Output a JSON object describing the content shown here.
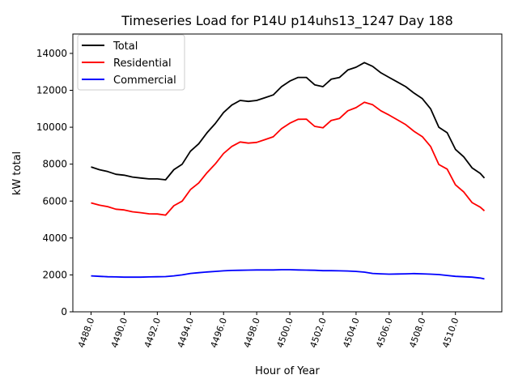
{
  "chart_data": {
    "type": "line",
    "title": "Timeseries Load for P14U p14uhs13_1247  Day 188",
    "xlabel": "Hour of Year",
    "ylabel": "kW total",
    "xlim": [
      4486.9,
      4512.8
    ],
    "ylim": [
      0,
      15050
    ],
    "xticks": [
      4488,
      4490,
      4492,
      4494,
      4496,
      4498,
      4500,
      4502,
      4504,
      4506,
      4508,
      4510
    ],
    "xtick_labels": [
      "4488.0",
      "4490.0",
      "4492.0",
      "4494.0",
      "4496.0",
      "4498.0",
      "4500.0",
      "4502.0",
      "4504.0",
      "4506.0",
      "4508.0",
      "4510.0"
    ],
    "yticks": [
      0,
      2000,
      4000,
      6000,
      8000,
      10000,
      12000,
      14000
    ],
    "ytick_labels": [
      "0",
      "2000",
      "4000",
      "6000",
      "8000",
      "10000",
      "12000",
      "14000"
    ],
    "grid": false,
    "legend_position": "top-left",
    "x": [
      4488,
      4488.5,
      4489,
      4489.5,
      4490,
      4490.5,
      4491,
      4491.5,
      4492,
      4492.5,
      4493,
      4493.5,
      4494,
      4494.5,
      4495,
      4495.5,
      4496,
      4496.5,
      4497,
      4497.5,
      4498,
      4498.5,
      4499,
      4499.5,
      4500,
      4500.5,
      4501,
      4501.5,
      4502,
      4502.5,
      4503,
      4503.5,
      4504,
      4504.5,
      4505,
      4505.5,
      4506,
      4506.5,
      4507,
      4507.5,
      4508,
      4508.5,
      4509,
      4509.5,
      4510,
      4510.5,
      4511,
      4511.5,
      4511.75
    ],
    "series": [
      {
        "name": "Total",
        "color": "#000000",
        "values": [
          7850,
          7700,
          7600,
          7450,
          7400,
          7300,
          7250,
          7200,
          7200,
          7150,
          7700,
          8000,
          8700,
          9100,
          9700,
          10200,
          10800,
          11200,
          11450,
          11400,
          11450,
          11600,
          11750,
          12200,
          12500,
          12700,
          12700,
          12300,
          12200,
          12600,
          12700,
          13100,
          13250,
          13500,
          13300,
          12950,
          12700,
          12450,
          12200,
          11850,
          11550,
          11000,
          10000,
          9700,
          8800,
          8400,
          7800,
          7500,
          7250
        ]
      },
      {
        "name": "Residential",
        "color": "#ff0000",
        "values": [
          5900,
          5780,
          5700,
          5560,
          5520,
          5420,
          5370,
          5310,
          5300,
          5240,
          5750,
          6000,
          6620,
          6980,
          7540,
          8010,
          8580,
          8960,
          9200,
          9140,
          9180,
          9330,
          9480,
          9920,
          10220,
          10430,
          10440,
          10050,
          9970,
          10370,
          10480,
          10890,
          11060,
          11350,
          11220,
          10890,
          10660,
          10400,
          10140,
          9780,
          9490,
          8960,
          7980,
          7730,
          6880,
          6500,
          5920,
          5670,
          5470
        ]
      },
      {
        "name": "Commercial",
        "color": "#0000ff",
        "values": [
          1950,
          1920,
          1900,
          1890,
          1880,
          1880,
          1880,
          1890,
          1900,
          1910,
          1950,
          2000,
          2080,
          2120,
          2160,
          2190,
          2220,
          2240,
          2250,
          2260,
          2270,
          2270,
          2270,
          2280,
          2280,
          2270,
          2260,
          2250,
          2230,
          2230,
          2220,
          2210,
          2190,
          2150,
          2080,
          2060,
          2040,
          2050,
          2060,
          2070,
          2060,
          2040,
          2020,
          1970,
          1920,
          1900,
          1880,
          1830,
          1780
        ]
      }
    ]
  }
}
